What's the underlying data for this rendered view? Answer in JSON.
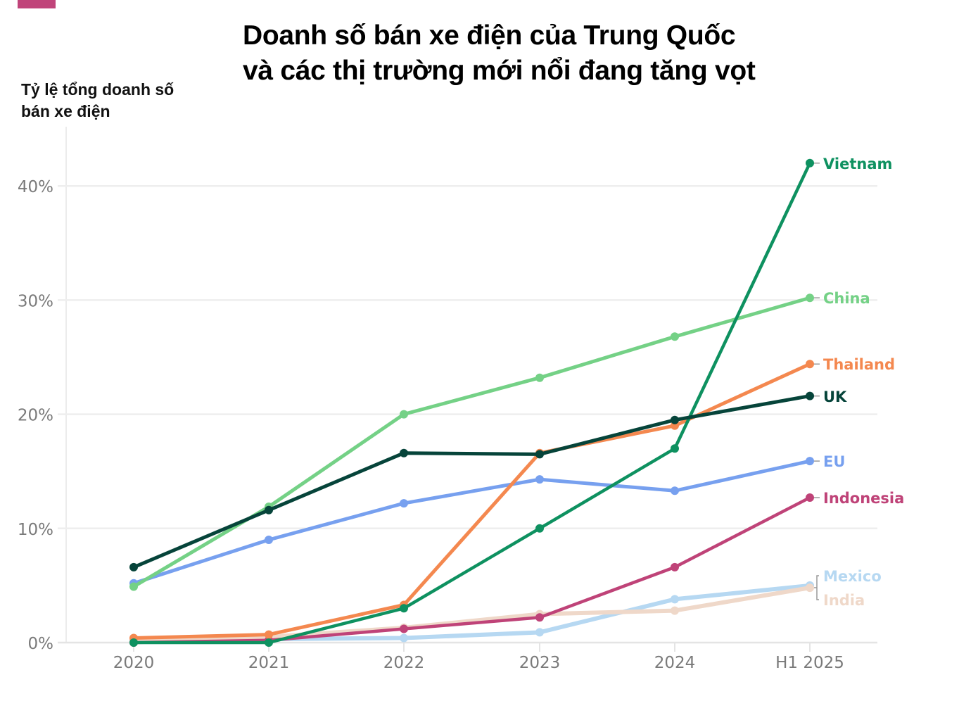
{
  "header": {
    "title_line1": "Doanh số bán xe điện của Trung Quốc",
    "title_line2": "và các thị trường mới nổi đang tăng vọt",
    "ylabel_line1": "Tỷ lệ tổng doanh số",
    "ylabel_line2": "bán xe điện",
    "brand_color": "#c0447a"
  },
  "chart_data": {
    "type": "line",
    "title": "Doanh số bán xe điện của Trung Quốc và các thị trường mới nổi đang tăng vọt",
    "xlabel": "",
    "ylabel": "Tỷ lệ tổng doanh số bán xe điện",
    "categories": [
      "2020",
      "2021",
      "2022",
      "2023",
      "2024",
      "H1 2025"
    ],
    "ylim": [
      0,
      45
    ],
    "yticks": [
      0,
      10,
      20,
      30,
      40
    ],
    "ytick_labels": [
      "0%",
      "10%",
      "20%",
      "30%",
      "40%"
    ],
    "grid": true,
    "legend_position": "direct labels at line ends (right)",
    "series": [
      {
        "name": "Vietnam",
        "color": "#0e9160",
        "values": [
          0.0,
          0.0,
          3.0,
          10.0,
          17.0,
          42.0
        ]
      },
      {
        "name": "China",
        "color": "#74d186",
        "values": [
          4.9,
          11.9,
          20.0,
          23.2,
          26.8,
          30.2
        ]
      },
      {
        "name": "Thailand",
        "color": "#f4884f",
        "values": [
          0.4,
          0.7,
          3.3,
          16.6,
          19.0,
          24.4
        ]
      },
      {
        "name": "UK",
        "color": "#06443a",
        "values": [
          6.6,
          11.6,
          16.6,
          16.5,
          19.5,
          21.6
        ]
      },
      {
        "name": "EU",
        "color": "#77a0ef",
        "values": [
          5.2,
          9.0,
          12.2,
          14.3,
          13.3,
          15.9
        ]
      },
      {
        "name": "Indonesia",
        "color": "#bf4378",
        "values": [
          0.0,
          0.2,
          1.2,
          2.2,
          6.6,
          12.7
        ]
      },
      {
        "name": "Mexico",
        "color": "#b6d8f2",
        "values": [
          0.1,
          0.3,
          0.4,
          0.9,
          3.8,
          5.0
        ]
      },
      {
        "name": "India",
        "color": "#efd8c9",
        "values": [
          0.3,
          0.5,
          1.3,
          2.5,
          2.8,
          4.8
        ]
      }
    ]
  }
}
